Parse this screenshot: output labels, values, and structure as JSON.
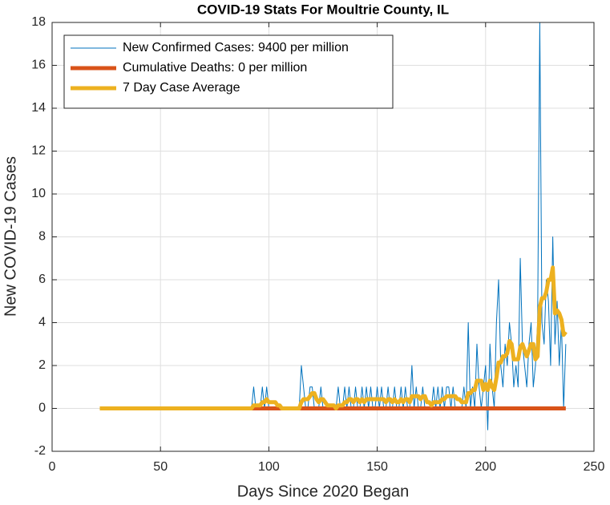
{
  "chart_data": {
    "type": "line",
    "title": "COVID-19 Stats For Moultrie County, IL",
    "xlabel": "Days Since 2020 Began",
    "ylabel": "New COVID-19 Cases",
    "xlim": [
      0,
      250
    ],
    "xticks": [
      0,
      50,
      100,
      150,
      200,
      250
    ],
    "ylim": [
      -2,
      18
    ],
    "yticks": [
      -2,
      0,
      2,
      4,
      6,
      8,
      10,
      12,
      14,
      16,
      18
    ],
    "grid": true,
    "legend": "northwest",
    "x": [
      22,
      23,
      24,
      25,
      26,
      27,
      28,
      29,
      30,
      31,
      32,
      33,
      34,
      35,
      36,
      37,
      38,
      39,
      40,
      41,
      42,
      43,
      44,
      45,
      46,
      47,
      48,
      49,
      50,
      51,
      52,
      53,
      54,
      55,
      56,
      57,
      58,
      59,
      60,
      61,
      62,
      63,
      64,
      65,
      66,
      67,
      68,
      69,
      70,
      71,
      72,
      73,
      74,
      75,
      76,
      77,
      78,
      79,
      80,
      81,
      82,
      83,
      84,
      85,
      86,
      87,
      88,
      89,
      90,
      91,
      92,
      93,
      94,
      95,
      96,
      97,
      98,
      99,
      100,
      101,
      102,
      103,
      104,
      105,
      106,
      107,
      108,
      109,
      110,
      111,
      112,
      113,
      114,
      115,
      116,
      117,
      118,
      119,
      120,
      121,
      122,
      123,
      124,
      125,
      126,
      127,
      128,
      129,
      130,
      131,
      132,
      133,
      134,
      135,
      136,
      137,
      138,
      139,
      140,
      141,
      142,
      143,
      144,
      145,
      146,
      147,
      148,
      149,
      150,
      151,
      152,
      153,
      154,
      155,
      156,
      157,
      158,
      159,
      160,
      161,
      162,
      163,
      164,
      165,
      166,
      167,
      168,
      169,
      170,
      171,
      172,
      173,
      174,
      175,
      176,
      177,
      178,
      179,
      180,
      181,
      182,
      183,
      184,
      185,
      186,
      187,
      188,
      189,
      190,
      191,
      192,
      193,
      194,
      195,
      196,
      197,
      198,
      199,
      200,
      201,
      202,
      203,
      204,
      205,
      206,
      207,
      208,
      209,
      210,
      211,
      212,
      213,
      214,
      215,
      216,
      217,
      218,
      219,
      220,
      221,
      222,
      223,
      224,
      225,
      226,
      227,
      228,
      229,
      230,
      231,
      232,
      233,
      234,
      235,
      236,
      237
    ],
    "series": [
      {
        "name": "New Confirmed Cases: 9400 per million",
        "color": "#0072BD",
        "width": 1,
        "values": [
          0,
          0,
          0,
          0,
          0,
          0,
          0,
          0,
          0,
          0,
          0,
          0,
          0,
          0,
          0,
          0,
          0,
          0,
          0,
          0,
          0,
          0,
          0,
          0,
          0,
          0,
          0,
          0,
          0,
          0,
          0,
          0,
          0,
          0,
          0,
          0,
          0,
          0,
          0,
          0,
          0,
          0,
          0,
          0,
          0,
          0,
          0,
          0,
          0,
          0,
          0,
          0,
          0,
          0,
          0,
          0,
          0,
          0,
          0,
          0,
          0,
          0,
          0,
          0,
          0,
          0,
          0,
          0,
          0,
          0,
          0,
          1,
          0,
          0,
          0,
          1,
          0,
          1,
          0,
          0,
          0,
          0,
          0,
          0,
          0,
          0,
          0,
          0,
          0,
          0,
          0,
          0,
          0,
          2,
          1,
          0,
          0,
          1,
          1,
          0,
          0,
          0,
          1,
          0,
          0,
          0,
          0,
          0,
          0,
          0,
          1,
          0,
          0,
          1,
          0,
          1,
          0,
          0,
          1,
          0,
          0,
          1,
          0,
          1,
          0,
          1,
          0,
          0,
          1,
          0,
          1,
          0,
          0,
          1,
          0,
          0,
          1,
          0,
          0,
          1,
          0,
          1,
          0,
          0,
          2,
          0,
          1,
          0,
          0,
          1,
          0,
          0,
          0,
          0,
          1,
          0,
          1,
          0,
          1,
          0,
          1,
          1,
          0,
          1,
          0,
          0,
          0,
          0,
          1,
          0,
          4,
          0,
          1,
          0,
          3,
          1,
          0,
          1,
          2,
          -1,
          3,
          1,
          0,
          4,
          6,
          2,
          1,
          3,
          2,
          4,
          3,
          1,
          2,
          1,
          7,
          3,
          2,
          1,
          3,
          4,
          1,
          2,
          4,
          18,
          4,
          3,
          6,
          5,
          2,
          8,
          3,
          5,
          2,
          4,
          0,
          3
        ]
      },
      {
        "name": "Cumulative Deaths: 0 per million",
        "color": "#D95319",
        "width": 5,
        "values": [
          0,
          0,
          0,
          0,
          0,
          0,
          0,
          0,
          0,
          0,
          0,
          0,
          0,
          0,
          0,
          0,
          0,
          0,
          0,
          0,
          0,
          0,
          0,
          0,
          0,
          0,
          0,
          0,
          0,
          0,
          0,
          0,
          0,
          0,
          0,
          0,
          0,
          0,
          0,
          0,
          0,
          0,
          0,
          0,
          0,
          0,
          0,
          0,
          0,
          0,
          0,
          0,
          0,
          0,
          0,
          0,
          0,
          0,
          0,
          0,
          0,
          0,
          0,
          0,
          0,
          0,
          0,
          0,
          0,
          0,
          0,
          0,
          0,
          0,
          0,
          0,
          0,
          0,
          0,
          0,
          0,
          0,
          0,
          0,
          0,
          0,
          0,
          0,
          0,
          0,
          0,
          0,
          0,
          0,
          0,
          0,
          0,
          0,
          0,
          0,
          0,
          0,
          0,
          0,
          0,
          0,
          0,
          0,
          0,
          0,
          0,
          0,
          0,
          0,
          0,
          0,
          0,
          0,
          0,
          0,
          0,
          0,
          0,
          0,
          0,
          0,
          0,
          0,
          0,
          0,
          0,
          0,
          0,
          0,
          0,
          0,
          0,
          0,
          0,
          0,
          0,
          0,
          0,
          0,
          0,
          0,
          0,
          0,
          0,
          0,
          0,
          0,
          0,
          0,
          0,
          0,
          0,
          0,
          0,
          0,
          0,
          0,
          0,
          0,
          0,
          0,
          0,
          0,
          0,
          0,
          0,
          0,
          0,
          0,
          0,
          0,
          0,
          0,
          0,
          0,
          0,
          0,
          0,
          0,
          0,
          0,
          0,
          0,
          0,
          0,
          0,
          0,
          0,
          0,
          0,
          0,
          0,
          0,
          0,
          0,
          0,
          0,
          0,
          0,
          0,
          0,
          0,
          0,
          0,
          0,
          0,
          0,
          0,
          0,
          0,
          0
        ]
      },
      {
        "name": "7 Day Case Average",
        "color": "#EDB120",
        "width": 5,
        "values": [
          0,
          0,
          0,
          0,
          0,
          0,
          0,
          0,
          0,
          0,
          0,
          0,
          0,
          0,
          0,
          0,
          0,
          0,
          0,
          0,
          0,
          0,
          0,
          0,
          0,
          0,
          0,
          0,
          0,
          0,
          0,
          0,
          0,
          0,
          0,
          0,
          0,
          0,
          0,
          0,
          0,
          0,
          0,
          0,
          0,
          0,
          0,
          0,
          0,
          0,
          0,
          0,
          0,
          0,
          0,
          0,
          0,
          0,
          0,
          0,
          0,
          0,
          0,
          0,
          0,
          0,
          0,
          0,
          0,
          0,
          0,
          0.14,
          0.14,
          0.14,
          0.14,
          0.29,
          0.29,
          0.43,
          0.29,
          0.29,
          0.29,
          0.29,
          0.14,
          0.14,
          0,
          0,
          0,
          0,
          0,
          0,
          0,
          0,
          0,
          0.29,
          0.43,
          0.43,
          0.43,
          0.57,
          0.71,
          0.71,
          0.43,
          0.29,
          0.43,
          0.43,
          0.29,
          0.14,
          0.14,
          0.14,
          0.14,
          0,
          0.14,
          0.14,
          0.14,
          0.29,
          0.29,
          0.43,
          0.43,
          0.29,
          0.43,
          0.43,
          0.29,
          0.43,
          0.29,
          0.43,
          0.43,
          0.43,
          0.43,
          0.43,
          0.43,
          0.43,
          0.43,
          0.43,
          0.29,
          0.43,
          0.43,
          0.29,
          0.43,
          0.29,
          0.29,
          0.43,
          0.29,
          0.43,
          0.43,
          0.29,
          0.57,
          0.57,
          0.57,
          0.57,
          0.43,
          0.57,
          0.57,
          0.29,
          0.29,
          0.14,
          0.29,
          0.29,
          0.29,
          0.29,
          0.43,
          0.43,
          0.57,
          0.57,
          0.57,
          0.57,
          0.57,
          0.43,
          0.43,
          0.29,
          0.29,
          0.29,
          0.71,
          0.71,
          0.86,
          0.86,
          1.29,
          1.29,
          1.29,
          0.86,
          1.14,
          0.86,
          1.29,
          1,
          0.86,
          1.43,
          2.14,
          2.14,
          2.43,
          2.43,
          2.57,
          3.14,
          3,
          2.29,
          2.29,
          2.29,
          2.86,
          3,
          2.71,
          2.43,
          2.71,
          3,
          3,
          2.29,
          2.43,
          4.71,
          5.14,
          5.14,
          5.43,
          6,
          6,
          6.57,
          4.43,
          4.57,
          4.43,
          4.14,
          3.43,
          3.57
        ]
      }
    ]
  }
}
